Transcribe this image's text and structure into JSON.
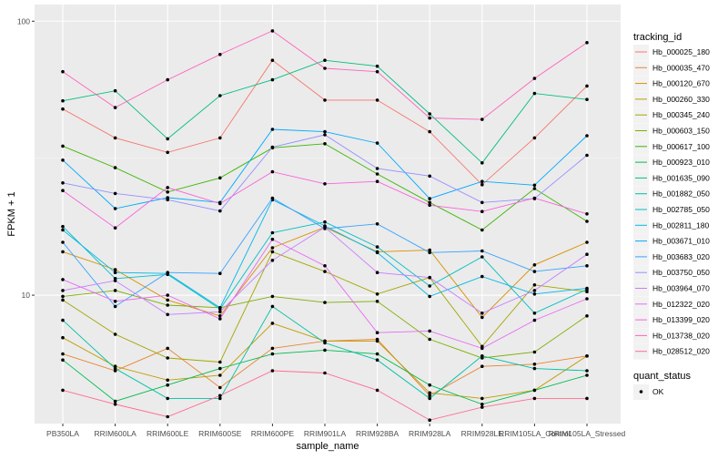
{
  "chart_data": {
    "type": "line",
    "title": "",
    "xlabel": "sample_name",
    "ylabel": "FPKM + 1",
    "y_scale": "log10",
    "ylim": [
      3.4,
      115
    ],
    "y_ticks": [
      10,
      100
    ],
    "y_tick_labels": [
      "10",
      "100"
    ],
    "grid": true,
    "legend_position": "right",
    "categories": [
      "PB350LA",
      "RRIM600LA",
      "RRIM600LE",
      "RRIM600SE",
      "RRIM600PE",
      "RRIM901LA",
      "RRIM928BA",
      "RRIM928LA",
      "RRIM928LE",
      "RRIM105LA_Control",
      "RRIM105LA_Stressed"
    ],
    "category_labels": [
      "PB350LA",
      "RRIM600LA",
      "RRIM600LE",
      "RRIM600SE",
      "RRIM600PE",
      "RRIM901LA",
      "RRIM928BA",
      "RRIM928LA",
      "RRIM928LE",
      "RRIM105LA_Control",
      "RRIM105LA_Stressed"
    ],
    "color_legend": {
      "title": "tracking_id",
      "entries": [
        "Hb_000025_180",
        "Hb_000035_470",
        "Hb_000120_670",
        "Hb_000260_330",
        "Hb_000345_240",
        "Hb_000603_150",
        "Hb_000617_100",
        "Hb_000923_010",
        "Hb_001635_090",
        "Hb_001882_050",
        "Hb_002785_050",
        "Hb_002811_180",
        "Hb_003671_010",
        "Hb_003683_020",
        "Hb_003750_050",
        "Hb_003964_070",
        "Hb_012322_020",
        "Hb_013399_020",
        "Hb_013738_020",
        "Hb_028512_020"
      ]
    },
    "shape_legend": {
      "title": "quant_status",
      "entries": [
        "OK"
      ]
    },
    "series": [
      {
        "name": "Hb_000025_180",
        "color": "#F8766D",
        "values": [
          47.8,
          37.5,
          33.2,
          37.5,
          72.0,
          51.5,
          51.5,
          39.5,
          25.3,
          37.5,
          58.0
        ]
      },
      {
        "name": "Hb_000035_470",
        "color": "#EA8331",
        "values": [
          6.1,
          5.3,
          6.4,
          4.6,
          6.4,
          6.8,
          6.9,
          4.3,
          5.5,
          5.6,
          6.0
        ]
      },
      {
        "name": "Hb_000120_670",
        "color": "#D89000",
        "values": [
          14.4,
          12.4,
          9.6,
          8.4,
          14.9,
          17.7,
          14.4,
          14.6,
          8.3,
          12.9,
          15.6
        ]
      },
      {
        "name": "Hb_000260_330",
        "color": "#C09B00",
        "values": [
          7.0,
          5.5,
          4.9,
          5.1,
          7.9,
          6.8,
          6.8,
          4.4,
          4.2,
          4.5,
          6.0
        ]
      },
      {
        "name": "Hb_000345_240",
        "color": "#A3A500",
        "values": [
          9.6,
          7.2,
          5.9,
          5.7,
          14.4,
          12.2,
          10.1,
          11.6,
          6.5,
          10.9,
          10.3
        ]
      },
      {
        "name": "Hb_000603_150",
        "color": "#7CAE00",
        "values": [
          9.9,
          10.4,
          9.2,
          9.0,
          9.9,
          9.4,
          9.5,
          6.9,
          5.9,
          6.2,
          8.4
        ]
      },
      {
        "name": "Hb_000617_100",
        "color": "#39B600",
        "values": [
          35.0,
          29.2,
          23.8,
          26.8,
          34.5,
          35.7,
          27.7,
          21.8,
          17.3,
          24.5,
          18.6
        ]
      },
      {
        "name": "Hb_000923_010",
        "color": "#00BB4E",
        "values": [
          5.8,
          4.1,
          4.7,
          5.4,
          6.1,
          6.3,
          6.1,
          4.7,
          4.0,
          4.5,
          5.1
        ]
      },
      {
        "name": "Hb_001635_090",
        "color": "#00BF7D",
        "values": [
          51.2,
          55.7,
          37.2,
          53.5,
          61.1,
          72.0,
          68.5,
          45.9,
          30.4,
          54.5,
          51.8
        ]
      },
      {
        "name": "Hb_001882_050",
        "color": "#00C1A3",
        "values": [
          8.1,
          5.4,
          4.2,
          4.2,
          9.1,
          6.7,
          5.8,
          4.2,
          6.0,
          5.4,
          5.3
        ]
      },
      {
        "name": "Hb_002785_050",
        "color": "#00BFC4",
        "values": [
          17.8,
          11.5,
          11.9,
          8.9,
          16.9,
          18.5,
          15.0,
          10.8,
          13.8,
          8.6,
          10.5
        ]
      },
      {
        "name": "Hb_002811_180",
        "color": "#00B8E7",
        "values": [
          17.3,
          12.1,
          12.0,
          9.0,
          22.3,
          17.9,
          14.3,
          9.9,
          11.7,
          10.1,
          10.6
        ]
      },
      {
        "name": "Hb_003671_010",
        "color": "#00A9FF",
        "values": [
          31.1,
          20.7,
          22.7,
          21.8,
          40.3,
          39.5,
          35.9,
          22.5,
          26.0,
          25.2,
          38.2
        ]
      },
      {
        "name": "Hb_003683_020",
        "color": "#35A2FF",
        "values": [
          15.6,
          9.1,
          12.1,
          12.0,
          22.6,
          17.5,
          18.2,
          14.3,
          14.5,
          12.2,
          12.8
        ]
      },
      {
        "name": "Hb_003750_050",
        "color": "#9590FF",
        "values": [
          25.7,
          23.5,
          22.3,
          20.3,
          34.7,
          38.5,
          29.0,
          27.2,
          21.8,
          22.5,
          32.4
        ]
      },
      {
        "name": "Hb_003964_070",
        "color": "#C77CFF",
        "values": [
          10.4,
          11.3,
          8.5,
          8.7,
          13.4,
          17.7,
          12.1,
          11.6,
          8.6,
          10.4,
          14.1
        ]
      },
      {
        "name": "Hb_012322_020",
        "color": "#E76BF3",
        "values": [
          11.4,
          9.5,
          10.0,
          8.2,
          16.0,
          12.8,
          7.3,
          7.4,
          6.4,
          8.1,
          9.7
        ]
      },
      {
        "name": "Hb_013399_020",
        "color": "#FA62DB",
        "values": [
          24.1,
          17.6,
          24.7,
          21.6,
          28.2,
          25.5,
          26.0,
          21.3,
          20.2,
          22.6,
          19.8
        ]
      },
      {
        "name": "Hb_013738_020",
        "color": "#FF62BC",
        "values": [
          65.4,
          48.4,
          61.1,
          75.6,
          92.2,
          67.3,
          65.4,
          44.3,
          43.8,
          61.8,
          83.5
        ]
      },
      {
        "name": "Hb_028512_020",
        "color": "#FF6C91",
        "values": [
          4.5,
          4.0,
          3.6,
          4.3,
          5.3,
          5.2,
          4.5,
          3.5,
          3.9,
          4.2,
          4.2
        ]
      }
    ]
  }
}
